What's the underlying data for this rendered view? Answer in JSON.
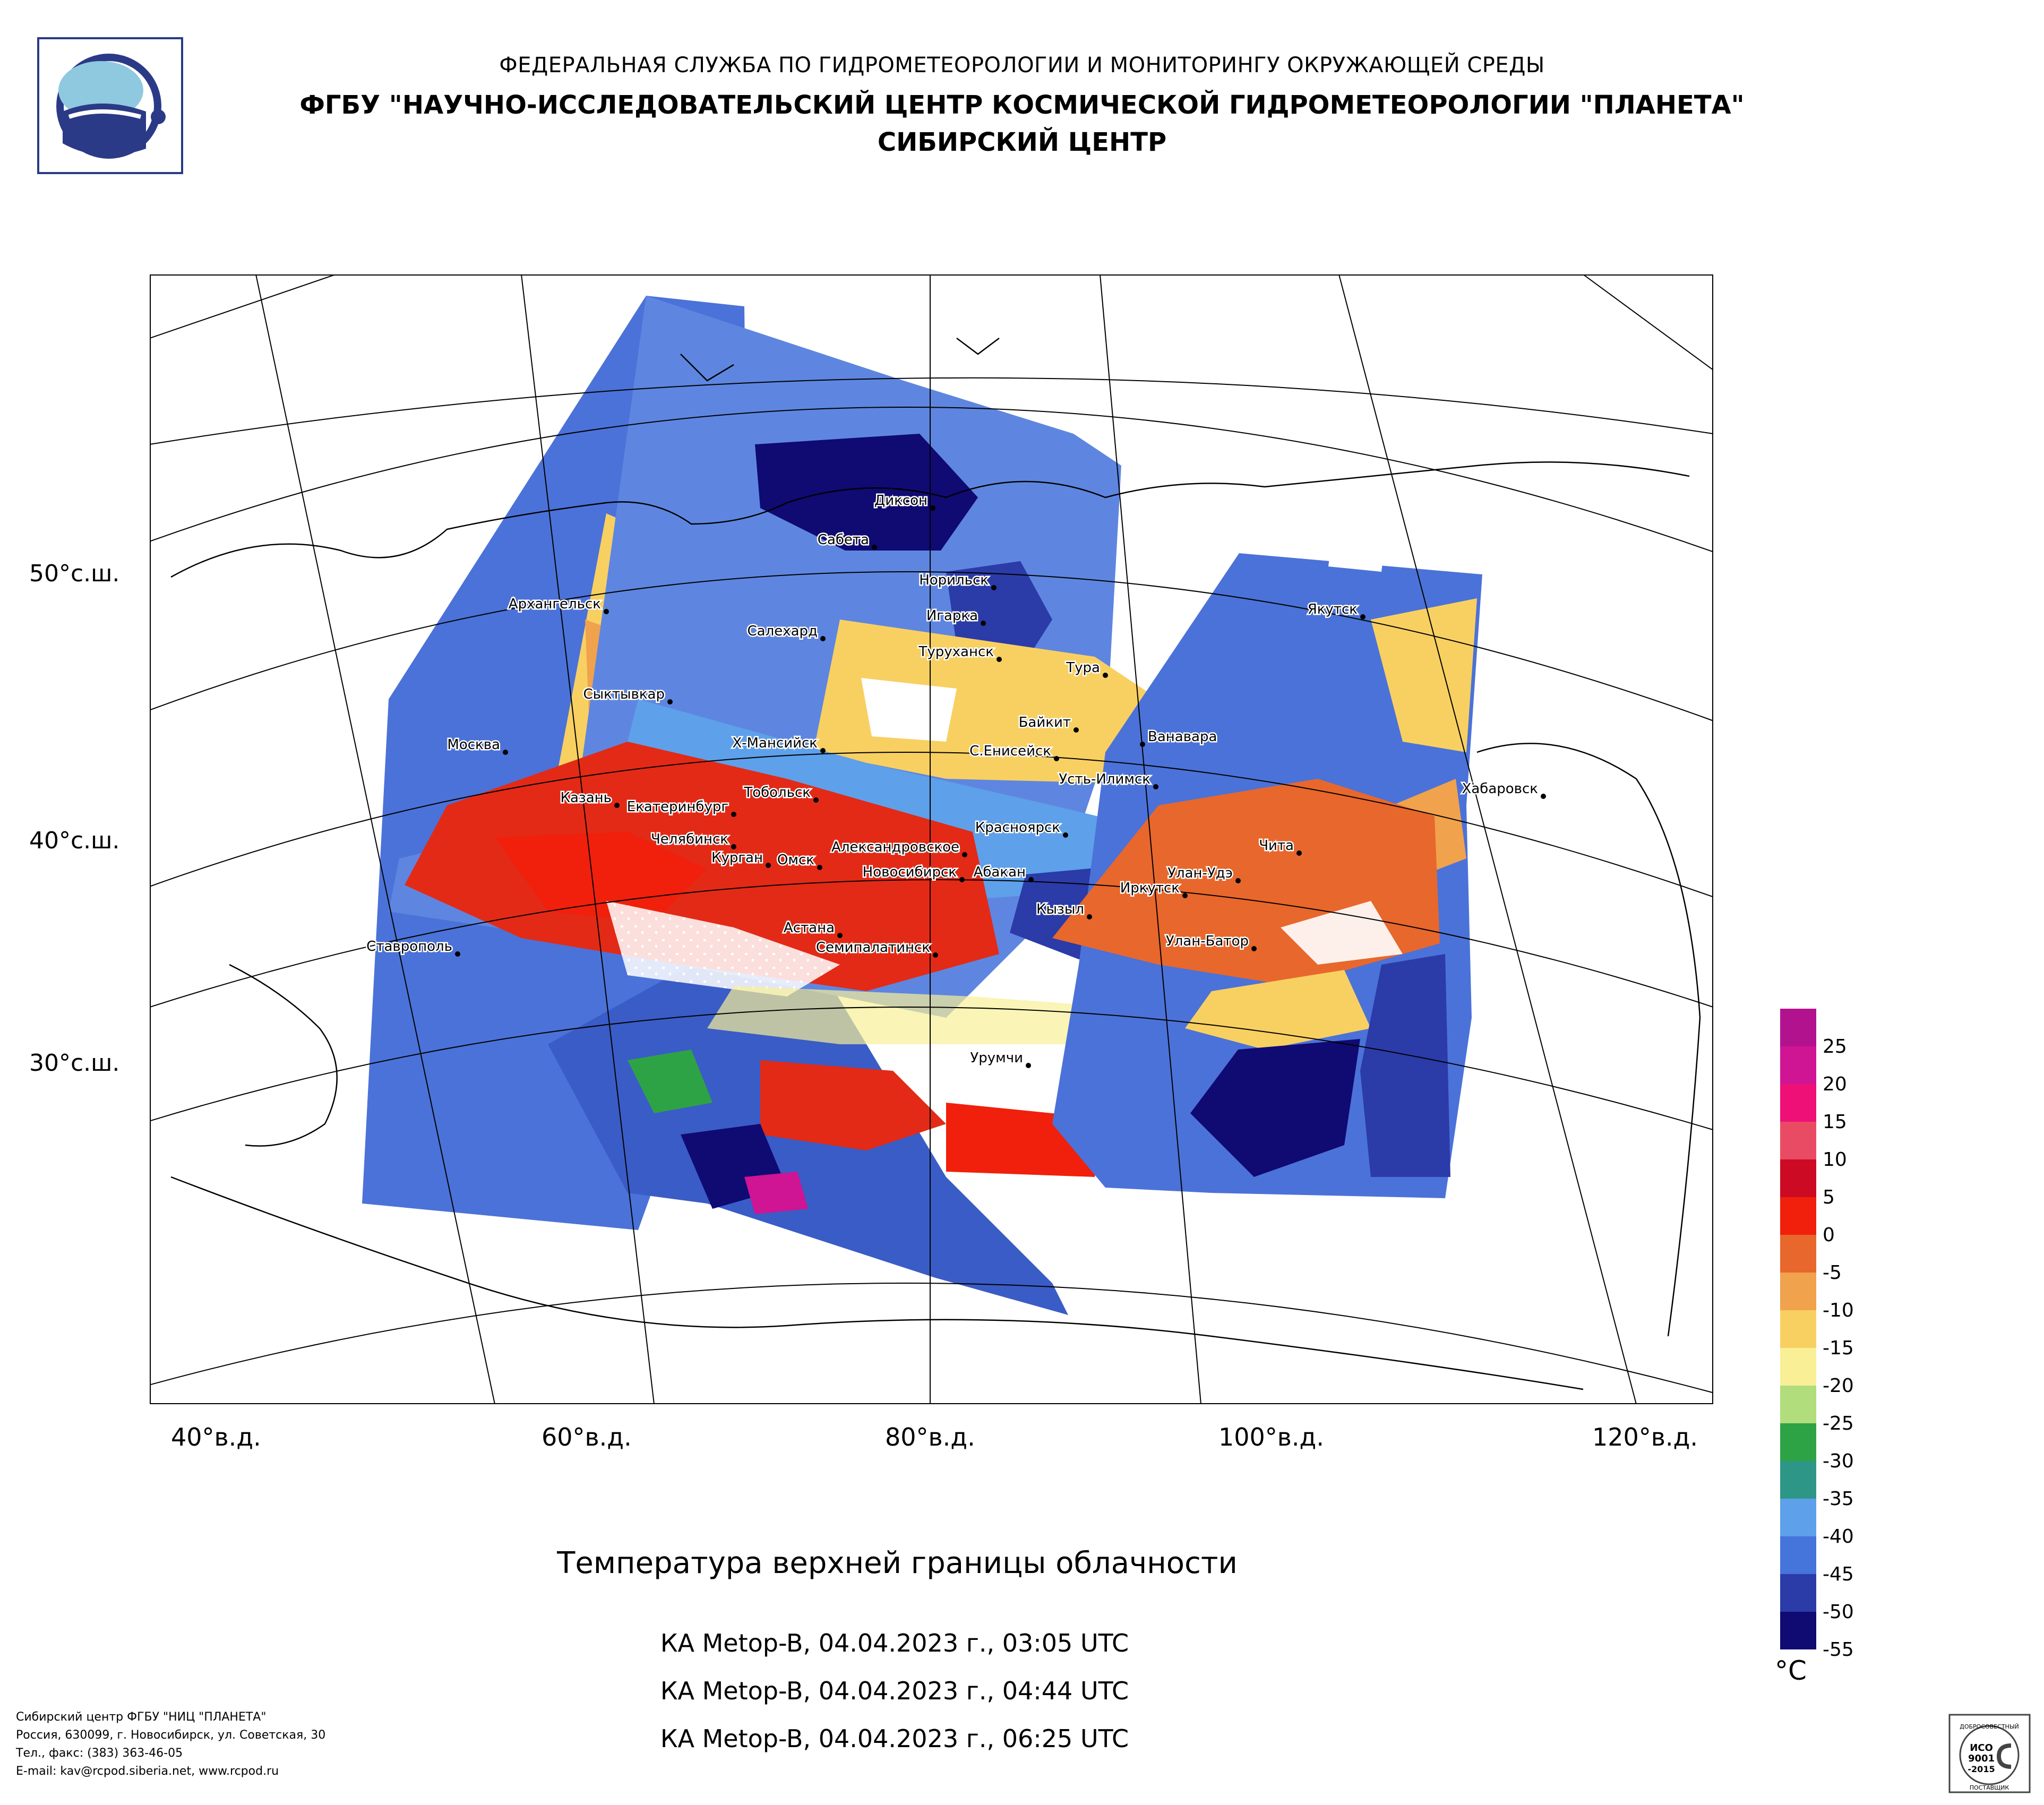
{
  "header": {
    "line1": "ФЕДЕРАЛЬНАЯ СЛУЖБА ПО ГИДРОМЕТЕОРОЛОГИИ И МОНИТОРИНГУ ОКРУЖАЮЩЕЙ СРЕДЫ",
    "line2": "ФГБУ \"НАУЧНО-ИССЛЕДОВАТЕЛЬСКИЙ ЦЕНТР КОСМИЧЕСКОЙ ГИДРОМЕТЕОРОЛОГИИ \"ПЛАНЕТА\"",
    "line3": "СИБИРСКИЙ ЦЕНТР"
  },
  "map": {
    "lat_labels": [
      "50°с.ш.",
      "40°с.ш.",
      "30°с.ш."
    ],
    "lon_labels": [
      "40°в.д.",
      "60°в.д.",
      "80°в.д.",
      "100°в.д.",
      "120°в.д."
    ],
    "cities": [
      "Диксон",
      "Сабета",
      "Норильск",
      "Игарка",
      "Салехард",
      "Туруханск",
      "Якутск",
      "Тура",
      "Архангельск",
      "Сыктывкар",
      "Байкит",
      "Ванавара",
      "Х-Мансийск",
      "С.Енисейск",
      "Москва",
      "Усть-Илимск",
      "Тобольск",
      "Хабаровск",
      "Казань",
      "Екатеринбург",
      "Красноярск",
      "Челябинск",
      "Чита",
      "Курган",
      "Омск",
      "Александровское",
      "Новосибирск",
      "Абакан",
      "Улан-Удэ",
      "Иркутск",
      "Кызыл",
      "Ставрополь",
      "Астана",
      "Улан-Батор",
      "Семипалатинск",
      "Урумчи"
    ]
  },
  "product": {
    "title": "Температура верхней границы облачности",
    "passes": [
      "КА Metop-B, 04.04.2023 г., 03:05 UTC",
      "КА Metop-B, 04.04.2023 г., 04:44 UTC",
      "КА Metop-B, 04.04.2023 г., 06:25 UTC"
    ]
  },
  "legend": {
    "unit": "°C",
    "ticks": [
      "25",
      "20",
      "15",
      "10",
      "5",
      "0",
      "-5",
      "-10",
      "-15",
      "-20",
      "-25",
      "-30",
      "-35",
      "-40",
      "-45",
      "-50",
      "-55"
    ],
    "colors": [
      "#b3128f",
      "#cf1494",
      "#ee1077",
      "#ea4b64",
      "#cc0a24",
      "#f0200c",
      "#e8672c",
      "#f0a24d",
      "#f8d062",
      "#f8ef97",
      "#b1dd7d",
      "#2ea345",
      "#2d9687",
      "#5ea0ea",
      "#4574db",
      "#2b3ba8",
      "#100a73"
    ]
  },
  "footer": {
    "lines": [
      "Сибирский центр ФГБУ \"НИЦ \"ПЛАНЕТА\"",
      "Россия, 630099, г. Новосибирск, ул. Советская, 30",
      "Тел., факс: (383) 363-46-05",
      "E-mail: kav@rcpod.siberia.net, www.rcpod.ru"
    ]
  },
  "certificate": {
    "text1": "ИСО",
    "text2": "9001",
    "text3": "-2015",
    "top": "ДОБРОСОВЕСТНЫЙ",
    "bottom": "ПОСТАВЩИК"
  }
}
